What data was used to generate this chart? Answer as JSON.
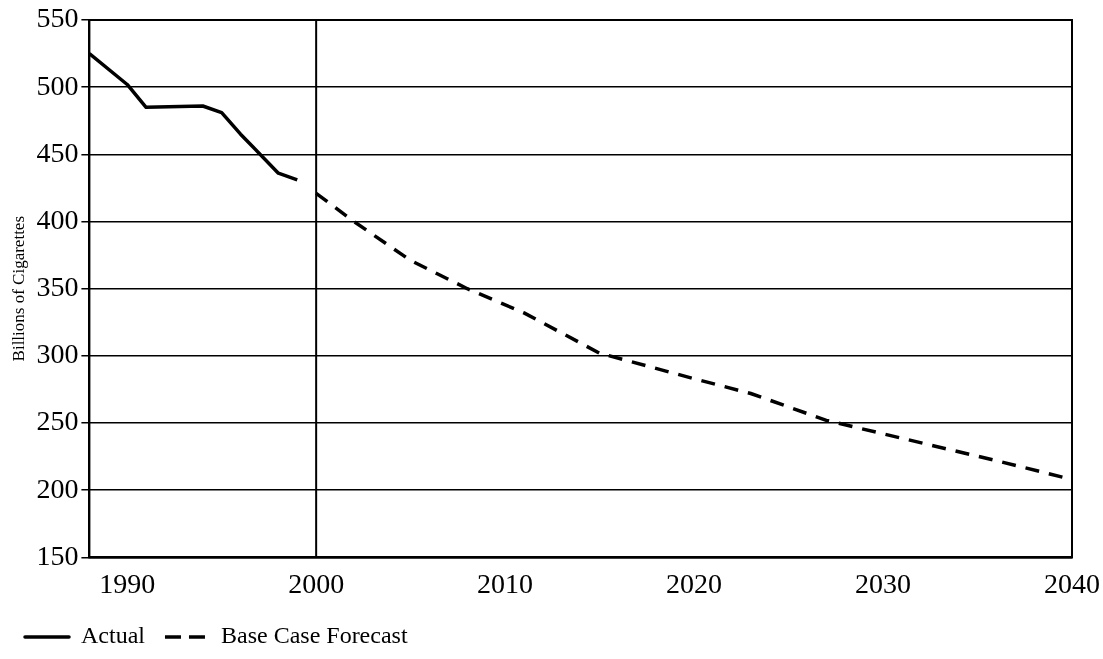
{
  "chart_data": {
    "type": "line",
    "ylabel": "Billions of Cigarettes",
    "xlim": [
      1988,
      2040
    ],
    "xticks": [
      1990,
      2000,
      2010,
      2020,
      2030,
      2040
    ],
    "ylim": [
      150,
      550
    ],
    "yticks": [
      150,
      200,
      250,
      300,
      350,
      400,
      450,
      500,
      550
    ],
    "grid": "y",
    "legend": "bottom left",
    "marker": "none",
    "ref_lines": [
      {
        "axis": "x",
        "value": 2000,
        "color": "#000000"
      }
    ],
    "series": [
      {
        "name": "Actual",
        "color": "#000000",
        "line_style": "solid",
        "x": [
          1988,
          1990,
          1991,
          1994,
          1995,
          1996,
          1998,
          1999
        ],
        "values": [
          525,
          502,
          485,
          486,
          481,
          465,
          436,
          431
        ]
      },
      {
        "name": "Base Case Forecast",
        "color": "#000000",
        "line_style": "dashed",
        "x": [
          2000,
          2002,
          2005,
          2008,
          2011,
          2015,
          2020,
          2023,
          2027,
          2030,
          2036,
          2040
        ],
        "values": [
          421,
          400,
          371,
          350,
          332,
          302,
          283,
          272,
          252,
          242,
          222,
          208
        ]
      }
    ]
  }
}
